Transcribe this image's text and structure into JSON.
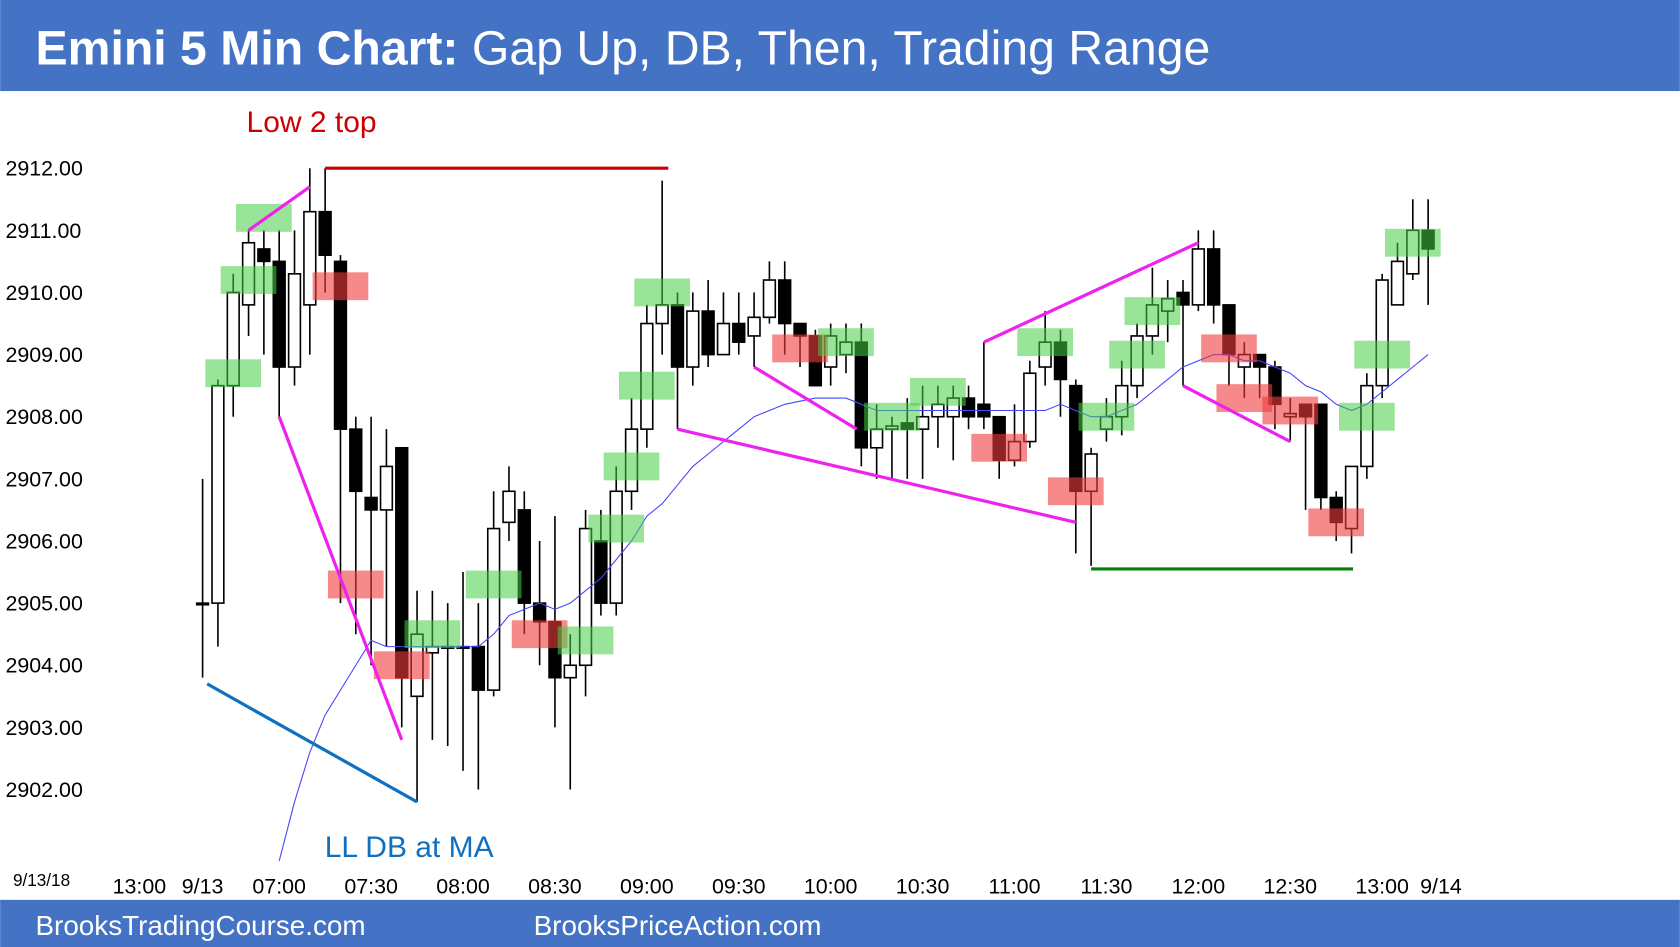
{
  "header": {
    "title_lead": "Emini 5 Min Chart:",
    "title_rest": "Gap Up, DB, Then, Trading Range"
  },
  "footer": {
    "left": "BrooksTradingCourse.com",
    "right": "BrooksPriceAction.com"
  },
  "chart_data": {
    "type": "candlestick",
    "date_label": "9/13/18",
    "x_start_label": "13:00",
    "x_end_label": "9/14",
    "categories": [
      "9/13",
      null,
      null,
      null,
      null,
      "07:00",
      null,
      null,
      null,
      null,
      null,
      "07:30",
      null,
      null,
      null,
      null,
      null,
      "08:00",
      null,
      null,
      null,
      null,
      null,
      "08:30",
      null,
      null,
      null,
      null,
      null,
      "09:00",
      null,
      null,
      null,
      null,
      null,
      "09:30",
      null,
      null,
      null,
      null,
      null,
      "10:00",
      null,
      null,
      null,
      null,
      null,
      "10:30",
      null,
      null,
      null,
      null,
      null,
      "11:00",
      null,
      null,
      null,
      null,
      null,
      "11:30",
      null,
      null,
      null,
      null,
      null,
      "12:00",
      null,
      null,
      null,
      null,
      null,
      "12:30",
      null,
      null,
      null,
      null,
      null,
      "13:00",
      null,
      null,
      null
    ],
    "candles": {
      "open": [
        2905,
        2905,
        2908.5,
        2909.8,
        2910.7,
        2910.5,
        2908.8,
        2909.8,
        2911.3,
        2910.5,
        2907.8,
        2906.7,
        2906.5,
        2907.5,
        2903.5,
        2904.2,
        2904.3,
        2904.3,
        2904.3,
        2903.6,
        2906.3,
        2906.5,
        2905,
        2904.7,
        2903.8,
        2904,
        2906,
        2905,
        2906.8,
        2907.8,
        2909.5,
        2909.8,
        2908.8,
        2909.7,
        2909,
        2909.5,
        2909.3,
        2909.6,
        2910.2,
        2909.5,
        2909.3,
        2908.8,
        2909,
        2909.2,
        2907.5,
        2907.8,
        2907.9,
        2907.8,
        2908,
        2908,
        2908.3,
        2908.2,
        2908,
        2907.3,
        2907.6,
        2908.8,
        2909.2,
        2908.5,
        2906.8,
        2907.8,
        2908,
        2908.5,
        2909.3,
        2909.7,
        2910,
        2909.8,
        2910.7,
        2909.8,
        2908.8,
        2909,
        2908.8,
        2908,
        2908.2,
        2908.2,
        2906.7,
        2906.2,
        2907.2,
        2908.5,
        2909.8,
        2910.3,
        2911
      ],
      "high": [
        2907,
        2908.6,
        2910.3,
        2911,
        2911,
        2911,
        2911,
        2912,
        2912,
        2910.6,
        2908,
        2908,
        2907.8,
        2907.5,
        2905.2,
        2905.2,
        2905,
        2905.5,
        2905,
        2906.8,
        2907.2,
        2906.8,
        2906,
        2906.4,
        2904.5,
        2906.5,
        2906.5,
        2907.2,
        2908.3,
        2909.8,
        2911.8,
        2910,
        2910,
        2910.2,
        2910,
        2910,
        2910,
        2910.5,
        2910.5,
        2909.5,
        2909.4,
        2909.5,
        2909.5,
        2909.5,
        2908.2,
        2908,
        2908.3,
        2908.5,
        2908.5,
        2908.5,
        2908.5,
        2909.2,
        2908,
        2908.2,
        2908.9,
        2909.7,
        2909.4,
        2908.6,
        2907.5,
        2908.3,
        2908.9,
        2909.5,
        2910.4,
        2910.2,
        2910.2,
        2911,
        2911,
        2909.8,
        2909.2,
        2909,
        2908.9,
        2908.3,
        2908.2,
        2908.2,
        2906.8,
        2907.2,
        2908.7,
        2910.3,
        2910.8,
        2911.5,
        2911.5
      ],
      "low": [
        2903.8,
        2904.3,
        2908,
        2909.3,
        2909,
        2908,
        2908.5,
        2909,
        2910,
        2905,
        2904.5,
        2904,
        2904.3,
        2903,
        2901.8,
        2902.8,
        2902.7,
        2902.3,
        2902,
        2903.5,
        2906,
        2904.5,
        2904,
        2903,
        2902,
        2903.5,
        2904.8,
        2904.8,
        2906.5,
        2907.5,
        2909,
        2907.8,
        2908.5,
        2908.8,
        2909,
        2909,
        2908.8,
        2909.5,
        2909,
        2908.8,
        2908.5,
        2908.5,
        2908.7,
        2907.2,
        2907,
        2907,
        2907,
        2907,
        2907.5,
        2907.3,
        2907.8,
        2907.8,
        2907,
        2907.2,
        2907.5,
        2908.5,
        2908,
        2905.8,
        2905.6,
        2907.6,
        2907.7,
        2908.3,
        2909,
        2909.2,
        2908.5,
        2909.7,
        2909.5,
        2908.5,
        2908.3,
        2908.3,
        2907.8,
        2907.6,
        2906.5,
        2906.5,
        2906,
        2905.8,
        2907,
        2908.3,
        2909.8,
        2910.2,
        2909.8
      ],
      "close": [
        2905,
        2908.5,
        2910,
        2910.8,
        2910.5,
        2908.8,
        2910.3,
        2911.3,
        2910.6,
        2907.8,
        2906.8,
        2906.5,
        2907.2,
        2903.8,
        2904.5,
        2904.3,
        2904.3,
        2904.3,
        2903.6,
        2906.2,
        2906.8,
        2905,
        2904.7,
        2903.8,
        2904,
        2906.2,
        2905,
        2906.8,
        2907.8,
        2909.5,
        2909.8,
        2908.8,
        2909.7,
        2909,
        2909.5,
        2909.2,
        2909.6,
        2910.2,
        2909.5,
        2909.3,
        2908.5,
        2909.3,
        2909.2,
        2907.5,
        2907.8,
        2907.85,
        2907.8,
        2908,
        2908.2,
        2908.3,
        2908,
        2908,
        2907.3,
        2907.6,
        2908.7,
        2909.2,
        2908.6,
        2906.8,
        2907.4,
        2908,
        2908.5,
        2909.3,
        2909.8,
        2909.9,
        2909.8,
        2910.7,
        2909.8,
        2909,
        2909,
        2908.8,
        2908.2,
        2908.05,
        2908,
        2906.7,
        2906.3,
        2907.2,
        2908.5,
        2910.2,
        2910.5,
        2911,
        2910.7
      ],
      "up_color": "#ffffff",
      "down_color": "#000000",
      "edge_color": "#000000"
    },
    "ma": {
      "color": "#4444ff",
      "values": [
        null,
        null,
        null,
        null,
        null,
        2900.85,
        2901.8,
        2902.6,
        2903.2,
        2903.6,
        2904,
        2904.4,
        2904.3,
        2904.3,
        2904.3,
        2904.3,
        2904.3,
        2904.3,
        2904.3,
        2904.5,
        2904.8,
        2904.9,
        2905,
        2904.9,
        2905,
        2905.2,
        2905.4,
        2905.7,
        2906,
        2906.4,
        2906.6,
        2906.9,
        2907.2,
        2907.4,
        2907.6,
        2907.8,
        2908,
        2908.1,
        2908.2,
        2908.25,
        2908.3,
        2908.3,
        2908.3,
        2908.2,
        2908.1,
        2908.1,
        2908.1,
        2908.1,
        2908.1,
        2908.1,
        2908.1,
        2908.1,
        2908.1,
        2908.1,
        2908.1,
        2908.1,
        2908.2,
        2908.1,
        2908,
        2908,
        2908.1,
        2908.2,
        2908.4,
        2908.6,
        2908.8,
        2908.9,
        2909,
        2909,
        2908.9,
        2908.9,
        2908.8,
        2908.7,
        2908.5,
        2908.4,
        2908.2,
        2908.1,
        2908.2,
        2908.4,
        2908.6,
        2908.8,
        2909
      ]
    },
    "highlights": [
      {
        "bar": 2,
        "price": 2908.7,
        "color": "green"
      },
      {
        "bar": 3,
        "price": 2910.2,
        "color": "green"
      },
      {
        "bar": 4,
        "price": 2911.2,
        "color": "green"
      },
      {
        "bar": 9,
        "price": 2910.1,
        "color": "red"
      },
      {
        "bar": 10,
        "price": 2905.3,
        "color": "red"
      },
      {
        "bar": 13,
        "price": 2904,
        "color": "red"
      },
      {
        "bar": 15,
        "price": 2904.5,
        "color": "green"
      },
      {
        "bar": 19,
        "price": 2905.3,
        "color": "green"
      },
      {
        "bar": 22,
        "price": 2904.5,
        "color": "red"
      },
      {
        "bar": 25,
        "price": 2904.4,
        "color": "green"
      },
      {
        "bar": 27,
        "price": 2906.2,
        "color": "green"
      },
      {
        "bar": 28,
        "price": 2907.2,
        "color": "green"
      },
      {
        "bar": 29,
        "price": 2908.5,
        "color": "green"
      },
      {
        "bar": 30,
        "price": 2910,
        "color": "green"
      },
      {
        "bar": 39,
        "price": 2909.1,
        "color": "red"
      },
      {
        "bar": 42,
        "price": 2909.2,
        "color": "green"
      },
      {
        "bar": 45,
        "price": 2908,
        "color": "green"
      },
      {
        "bar": 48,
        "price": 2908.4,
        "color": "green"
      },
      {
        "bar": 52,
        "price": 2907.5,
        "color": "red"
      },
      {
        "bar": 55,
        "price": 2909.2,
        "color": "green"
      },
      {
        "bar": 57,
        "price": 2906.8,
        "color": "red"
      },
      {
        "bar": 59,
        "price": 2908,
        "color": "green"
      },
      {
        "bar": 61,
        "price": 2909,
        "color": "green"
      },
      {
        "bar": 62,
        "price": 2909.7,
        "color": "green"
      },
      {
        "bar": 67,
        "price": 2909.1,
        "color": "red"
      },
      {
        "bar": 68,
        "price": 2908.3,
        "color": "red"
      },
      {
        "bar": 71,
        "price": 2908.1,
        "color": "red"
      },
      {
        "bar": 74,
        "price": 2906.3,
        "color": "red"
      },
      {
        "bar": 76,
        "price": 2908,
        "color": "green"
      },
      {
        "bar": 77,
        "price": 2909,
        "color": "green"
      },
      {
        "bar": 79,
        "price": 2910.8,
        "color": "green"
      }
    ],
    "trend_lines": [
      {
        "color": "#ee22ee",
        "x": [
          3,
          7
        ],
        "y": [
          2911,
          2911.7
        ]
      },
      {
        "color": "#ee22ee",
        "x": [
          5,
          13
        ],
        "y": [
          2908,
          2902.8
        ]
      },
      {
        "color": "#cc0000",
        "x": [
          8,
          30.4
        ],
        "y": [
          2912,
          2912
        ]
      },
      {
        "color": "#ee22ee",
        "x": [
          31,
          57
        ],
        "y": [
          2907.8,
          2906.3
        ]
      },
      {
        "color": "#ee22ee",
        "x": [
          36,
          42.7
        ],
        "y": [
          2908.8,
          2907.8
        ]
      },
      {
        "color": "#ee22ee",
        "x": [
          51,
          65
        ],
        "y": [
          2909.2,
          2910.8
        ]
      },
      {
        "color": "#ee22ee",
        "x": [
          64,
          71
        ],
        "y": [
          2908.5,
          2907.6
        ]
      },
      {
        "color": "#008000",
        "x": [
          58,
          75.1
        ],
        "y": [
          2905.55,
          2905.55
        ]
      },
      {
        "color": "#1070c0",
        "x": [
          0.3,
          14
        ],
        "y": [
          2903.7,
          2901.8
        ]
      }
    ],
    "annotations": [
      {
        "text": "Low 2 top",
        "color": "#cc0000"
      },
      {
        "text": "LL DB at MA",
        "color": "#1070c0"
      }
    ],
    "ylim": [
      2900.75,
      2913.25
    ],
    "yticks": [
      {
        "value": 2902,
        "label": "2902.00"
      },
      {
        "value": 2903,
        "label": "2903.00"
      },
      {
        "value": 2904,
        "label": "2904.00"
      },
      {
        "value": 2905,
        "label": "2905.00"
      },
      {
        "value": 2906,
        "label": "2906.00"
      },
      {
        "value": 2907,
        "label": "2907.00"
      },
      {
        "value": 2908,
        "label": "2908.00"
      },
      {
        "value": 2909,
        "label": "2909.00"
      },
      {
        "value": 2910,
        "label": "2910.00"
      },
      {
        "value": 2911,
        "label": "2911.00"
      },
      {
        "value": 2912,
        "label": "2912.00"
      }
    ]
  }
}
